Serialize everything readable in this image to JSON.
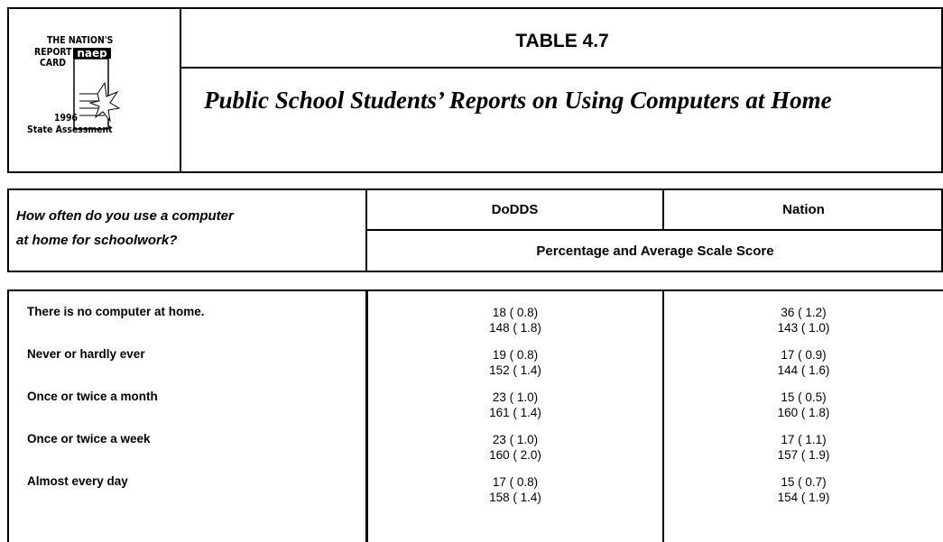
{
  "header": {
    "logo": {
      "line1": "THE NATION'S",
      "line2": "REPORT",
      "line3": "CARD",
      "mark": "naep",
      "year": "1996",
      "assessment": "State Assessment"
    },
    "title": "TABLE 4.7",
    "subtitle": "Public School Students’ Reports on Using Computers at Home"
  },
  "table": {
    "question_line1": "How often do you use a computer",
    "question_line2": "at home for schoolwork?",
    "columns": [
      "DoDDS",
      "Nation"
    ],
    "measure": "Percentage and Average Scale Score",
    "rows": [
      {
        "label": "There is no computer at home.",
        "cells": [
          [
            "18 ( 0.8)",
            "148 ( 1.8)"
          ],
          [
            "36 ( 1.2)",
            "143 ( 1.0)"
          ]
        ]
      },
      {
        "label": "Never or hardly ever",
        "cells": [
          [
            "19 ( 0.8)",
            "152 ( 1.4)"
          ],
          [
            "17 ( 0.9)",
            "144 ( 1.6)"
          ]
        ]
      },
      {
        "label": "Once or twice a month",
        "cells": [
          [
            "23 ( 1.0)",
            "161 ( 1.4)"
          ],
          [
            "15 ( 0.5)",
            "160 ( 1.8)"
          ]
        ]
      },
      {
        "label": "Once or twice a week",
        "cells": [
          [
            "23 ( 1.0)",
            "160 ( 2.0)"
          ],
          [
            "17 ( 1.1)",
            "157 ( 1.9)"
          ]
        ]
      },
      {
        "label": "Almost every day",
        "cells": [
          [
            "17 ( 0.8)",
            "158 ( 1.4)"
          ],
          [
            "15 ( 0.7)",
            "154 ( 1.9)"
          ]
        ]
      }
    ]
  }
}
